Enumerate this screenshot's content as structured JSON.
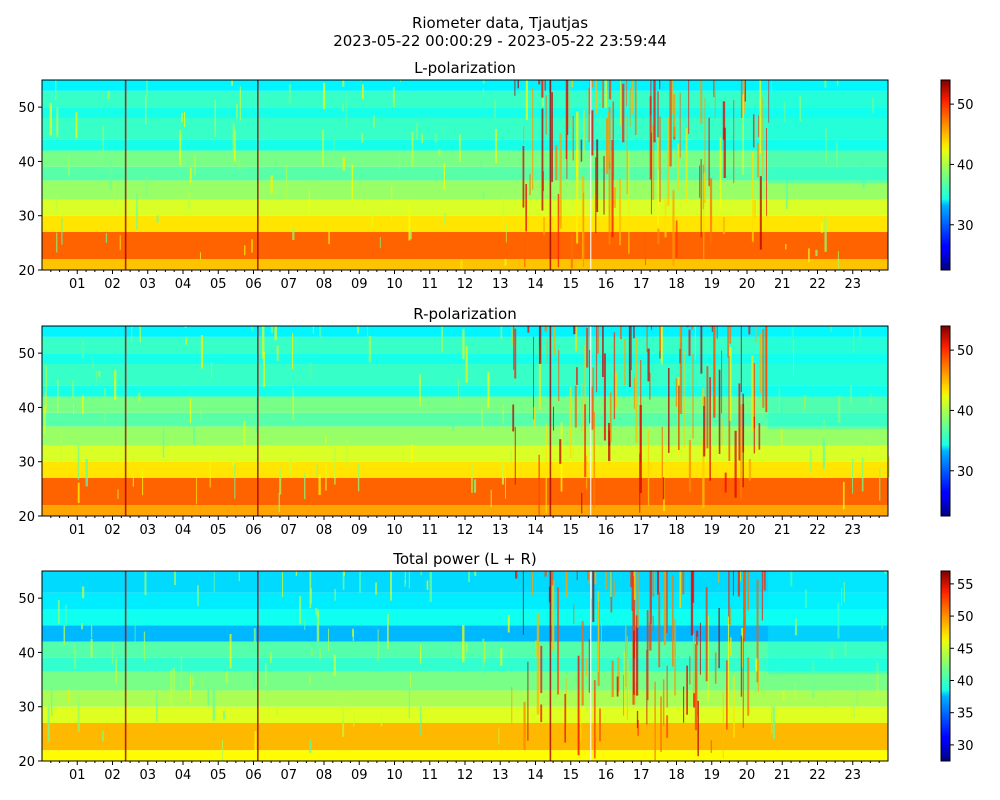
{
  "figure": {
    "title_line1": "Riometer data, Tjautjas",
    "title_line2": "2023-05-22 00:00:29 - 2023-05-22 23:59:44"
  },
  "chart_data": [
    {
      "type": "heatmap",
      "title": "L-polarization",
      "xlabel": "",
      "ylabel": "",
      "x_tick_labels": [
        "01",
        "02",
        "03",
        "04",
        "05",
        "06",
        "07",
        "08",
        "09",
        "10",
        "11",
        "12",
        "13",
        "14",
        "15",
        "16",
        "17",
        "18",
        "19",
        "20",
        "21",
        "22",
        "23"
      ],
      "xlim_hours": [
        0,
        24
      ],
      "y_ticks": [
        20,
        30,
        40,
        50
      ],
      "ylim": [
        20,
        55
      ],
      "colorbar": {
        "ticks": [
          30,
          40,
          50
        ],
        "range": [
          22.5,
          54
        ],
        "colormap": "jet"
      },
      "color_bands": [
        {
          "y": [
            20,
            22
          ],
          "value": 44
        },
        {
          "y": [
            22,
            27
          ],
          "value": 47
        },
        {
          "y": [
            27,
            30
          ],
          "value": 43
        },
        {
          "y": [
            30,
            33
          ],
          "value": 41
        },
        {
          "y": [
            33,
            36.5
          ],
          "value": 39
        },
        {
          "y": [
            36.5,
            39
          ],
          "value": 37
        },
        {
          "y": [
            39,
            42
          ],
          "value": 38
        },
        {
          "y": [
            42,
            44
          ],
          "value": 35
        },
        {
          "y": [
            44,
            48
          ],
          "value": 36
        },
        {
          "y": [
            48,
            50
          ],
          "value": 35
        },
        {
          "y": [
            50,
            53
          ],
          "value": 36
        },
        {
          "y": [
            53,
            55
          ],
          "value": 34
        }
      ],
      "active_interval_hours": [
        13.3,
        20.6
      ],
      "quiet_interval_hours": [
        20.6,
        24
      ],
      "spike_hours": [
        2.35,
        6.1,
        14.4
      ]
    },
    {
      "type": "heatmap",
      "title": "R-polarization",
      "xlabel": "",
      "ylabel": "",
      "x_tick_labels": [
        "01",
        "02",
        "03",
        "04",
        "05",
        "06",
        "07",
        "08",
        "09",
        "10",
        "11",
        "12",
        "13",
        "14",
        "15",
        "16",
        "17",
        "18",
        "19",
        "20",
        "21",
        "22",
        "23"
      ],
      "xlim_hours": [
        0,
        24
      ],
      "y_ticks": [
        20,
        30,
        40,
        50
      ],
      "ylim": [
        20,
        55
      ],
      "colorbar": {
        "ticks": [
          30,
          40,
          50
        ],
        "range": [
          22.5,
          54
        ],
        "colormap": "jet"
      },
      "color_bands": [
        {
          "y": [
            20,
            22
          ],
          "value": 45
        },
        {
          "y": [
            22,
            27
          ],
          "value": 47
        },
        {
          "y": [
            27,
            30
          ],
          "value": 43
        },
        {
          "y": [
            30,
            33
          ],
          "value": 41
        },
        {
          "y": [
            33,
            36.5
          ],
          "value": 39
        },
        {
          "y": [
            36.5,
            39
          ],
          "value": 37
        },
        {
          "y": [
            39,
            42
          ],
          "value": 38
        },
        {
          "y": [
            42,
            44
          ],
          "value": 35
        },
        {
          "y": [
            44,
            48
          ],
          "value": 36
        },
        {
          "y": [
            48,
            50
          ],
          "value": 35
        },
        {
          "y": [
            50,
            53
          ],
          "value": 36
        },
        {
          "y": [
            53,
            55
          ],
          "value": 34
        }
      ],
      "active_interval_hours": [
        13.3,
        20.6
      ],
      "quiet_interval_hours": [
        20.6,
        24
      ],
      "spike_hours": [
        2.35,
        6.1,
        14.4
      ]
    },
    {
      "type": "heatmap",
      "title": "Total power (L + R)",
      "xlabel": "",
      "ylabel": "",
      "x_tick_labels": [
        "01",
        "02",
        "03",
        "04",
        "05",
        "06",
        "07",
        "08",
        "09",
        "10",
        "11",
        "12",
        "13",
        "14",
        "15",
        "16",
        "17",
        "18",
        "19",
        "20",
        "21",
        "22",
        "23"
      ],
      "xlim_hours": [
        0,
        24
      ],
      "y_ticks": [
        20,
        30,
        40,
        50
      ],
      "ylim": [
        20,
        55
      ],
      "colorbar": {
        "ticks": [
          30,
          35,
          40,
          45,
          50,
          55
        ],
        "range": [
          27.5,
          57
        ],
        "colormap": "jet"
      },
      "color_bands": [
        {
          "y": [
            20,
            22
          ],
          "value": 46
        },
        {
          "y": [
            22,
            27
          ],
          "value": 48
        },
        {
          "y": [
            27,
            30
          ],
          "value": 45
        },
        {
          "y": [
            30,
            33
          ],
          "value": 43.5
        },
        {
          "y": [
            33,
            36.5
          ],
          "value": 42
        },
        {
          "y": [
            36.5,
            39
          ],
          "value": 40
        },
        {
          "y": [
            39,
            42
          ],
          "value": 41
        },
        {
          "y": [
            42,
            45
          ],
          "value": 36.5
        },
        {
          "y": [
            45,
            48
          ],
          "value": 39
        },
        {
          "y": [
            48,
            51
          ],
          "value": 38
        },
        {
          "y": [
            51,
            55
          ],
          "value": 37.5
        }
      ],
      "active_interval_hours": [
        13.3,
        20.6
      ],
      "quiet_interval_hours": [
        20.6,
        24
      ],
      "spike_hours": [
        2.35,
        6.1,
        14.4
      ]
    }
  ]
}
